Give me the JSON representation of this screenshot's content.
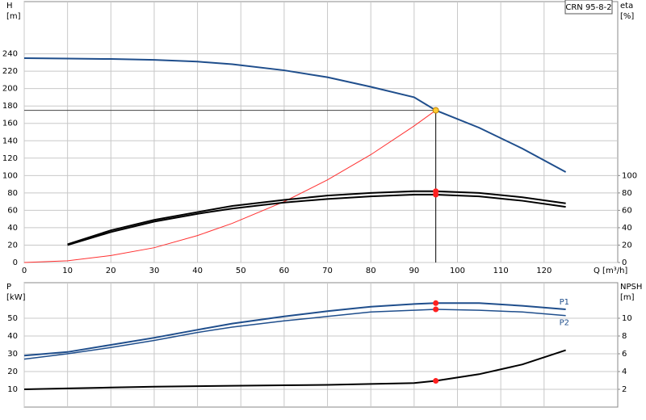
{
  "chart_data": [
    {
      "type": "line",
      "legend_title": "CRN 95-8-2",
      "xlabel": "Q [m³/h]",
      "ylabel": [
        "H",
        "[m]"
      ],
      "y2label": [
        "eta",
        "[%]"
      ],
      "x": [
        0,
        10,
        20,
        30,
        40,
        48,
        60,
        70,
        80,
        90,
        95,
        105,
        115,
        125
      ],
      "xlim": [
        0,
        137
      ],
      "xticks": [
        0,
        10,
        20,
        30,
        40,
        50,
        60,
        70,
        80,
        90,
        100,
        110,
        120
      ],
      "ylim": [
        0,
        300
      ],
      "yticks": [
        0,
        20,
        40,
        60,
        80,
        100,
        120,
        140,
        160,
        180,
        200,
        220,
        240
      ],
      "y2lim": [
        0,
        300
      ],
      "y2ticks": [
        0,
        20,
        40,
        60,
        80,
        100
      ],
      "grid": true,
      "duty_q": 95,
      "series": [
        {
          "color": "#1f4e8c",
          "width": 2,
          "crosshair": true,
          "point_color": "#ffcc33",
          "values": [
            235,
            234.5,
            234,
            233,
            231,
            228,
            221,
            213,
            202,
            190,
            175,
            155,
            131,
            104
          ]
        },
        {
          "color": "#ff3030",
          "width": 1,
          "values": [
            0,
            2,
            8,
            17,
            31,
            45,
            70,
            95,
            124,
            157,
            175,
            null,
            null,
            null
          ]
        },
        {
          "color": "#000000",
          "width": 2,
          "axis": "y2",
          "point_color": "#ff2020",
          "values": [
            null,
            21,
            37,
            49,
            58,
            65,
            72,
            77,
            80,
            82,
            82,
            80,
            75,
            68
          ]
        },
        {
          "color": "#000000",
          "width": 2,
          "axis": "y2",
          "point_color": "#ff2020",
          "values": [
            null,
            20,
            35,
            47,
            56,
            62,
            69,
            73,
            76,
            78,
            78,
            76,
            71,
            64
          ]
        }
      ]
    },
    {
      "type": "line",
      "ylabel": [
        "P",
        "[kW]"
      ],
      "y2label": [
        "NPSH",
        "[m]"
      ],
      "x": [
        0,
        10,
        20,
        30,
        40,
        48,
        60,
        70,
        80,
        90,
        95,
        105,
        115,
        125
      ],
      "xlim": [
        0,
        137
      ],
      "xticks": [
        0,
        10,
        20,
        30,
        40,
        50,
        60,
        70,
        80,
        90,
        100,
        110,
        120
      ],
      "ylim": [
        0,
        70
      ],
      "yticks": [
        10,
        20,
        30,
        40,
        50
      ],
      "y2lim": [
        0,
        14
      ],
      "y2ticks": [
        2,
        4,
        6,
        8,
        10
      ],
      "grid": true,
      "duty_q": 95,
      "series": [
        {
          "name": "P1",
          "color": "#1f4e8c",
          "width": 2,
          "point_color": "#ff2020",
          "values": [
            29,
            31,
            35,
            39,
            43.5,
            47,
            51,
            54,
            56.5,
            58,
            58.5,
            58.5,
            57,
            55
          ]
        },
        {
          "name": "P2",
          "color": "#1f4e8c",
          "width": 1.5,
          "point_color": "#ff2020",
          "values": [
            27,
            30,
            33.5,
            37.5,
            42,
            45,
            48.5,
            51,
            53.5,
            54.5,
            55,
            54.5,
            53.5,
            51.5
          ]
        },
        {
          "color": "#000000",
          "width": 2,
          "axis": "y2",
          "point_color": "#ff2020",
          "values": [
            2,
            2.1,
            2.2,
            2.3,
            2.35,
            2.4,
            2.45,
            2.5,
            2.6,
            2.7,
            2.95,
            3.7,
            4.8,
            6.4
          ]
        }
      ]
    }
  ]
}
